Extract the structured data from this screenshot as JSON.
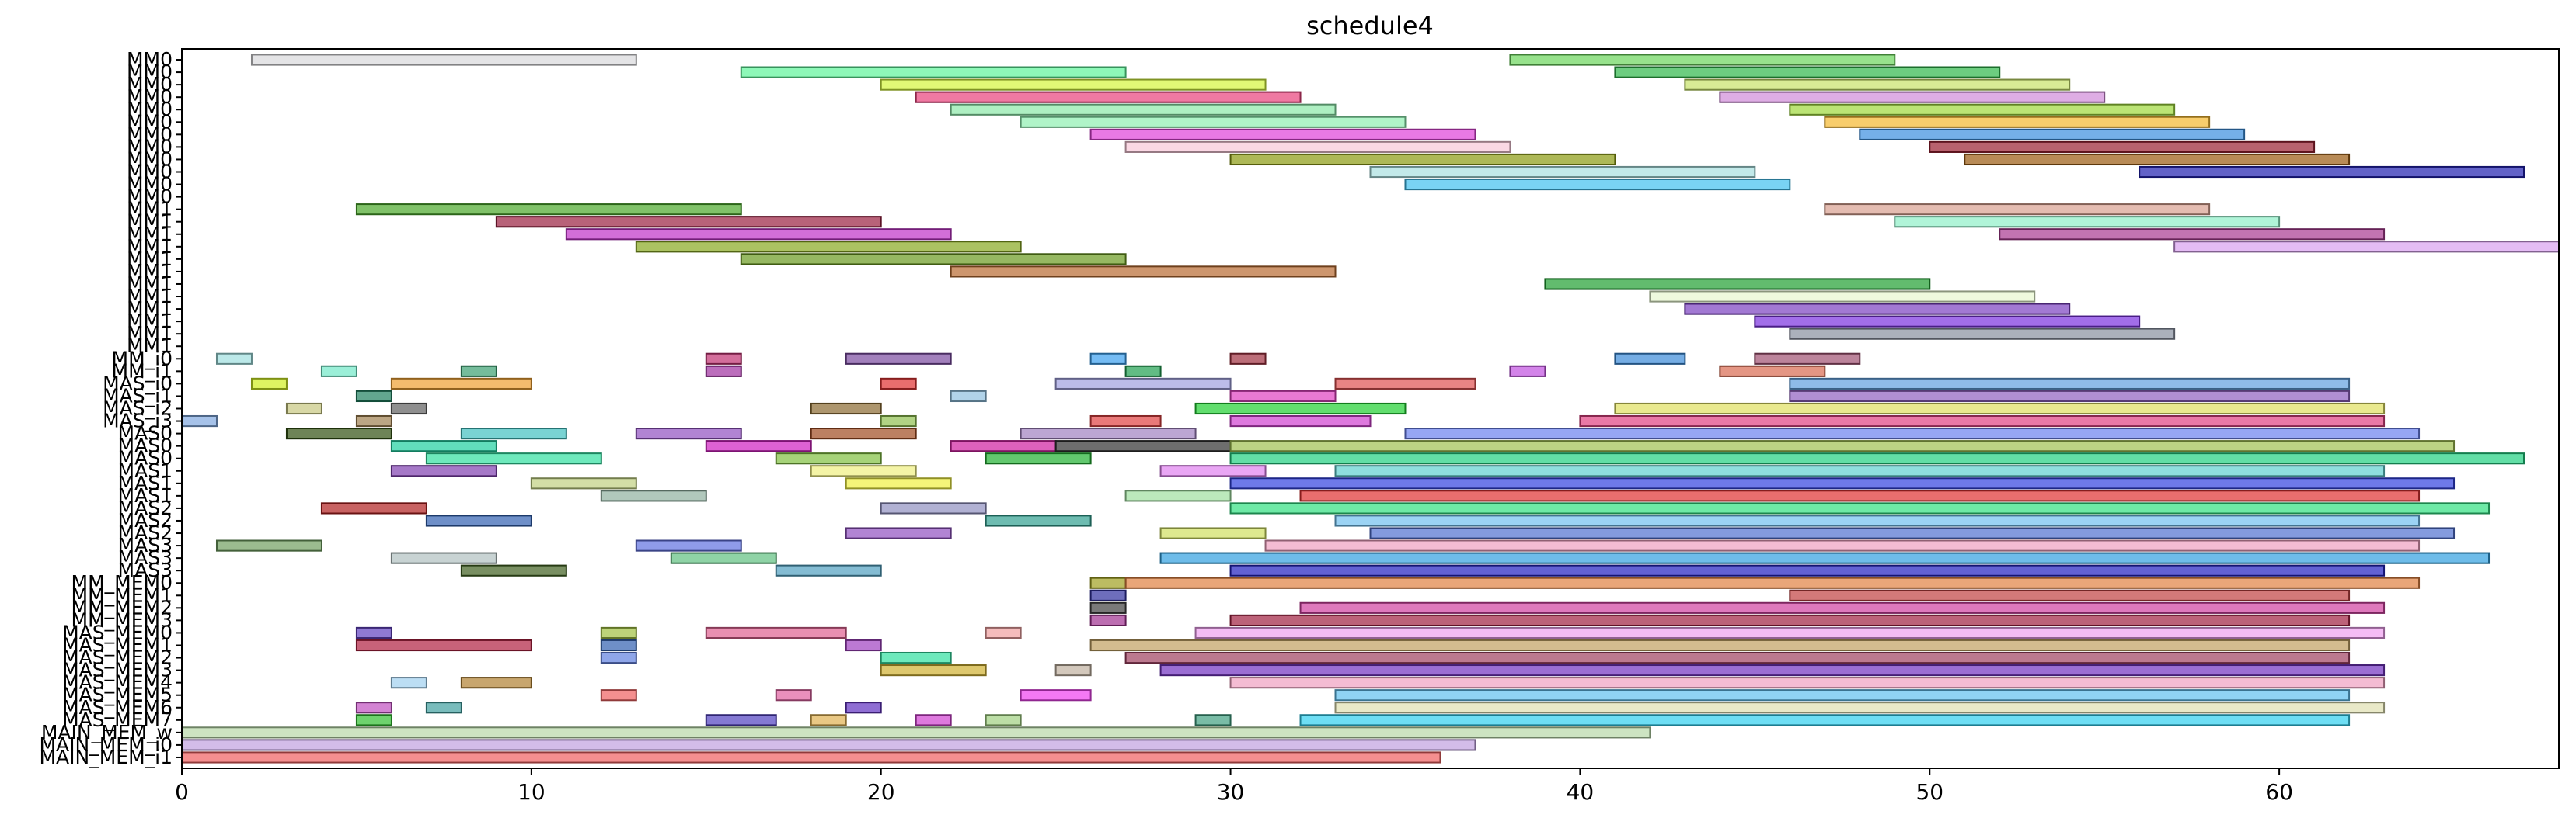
{
  "chart_data": {
    "type": "gantt",
    "title": "schedule4",
    "xlim": [
      0,
      68
    ],
    "xticks": [
      0,
      10,
      20,
      30,
      40,
      50,
      60
    ],
    "grid": false,
    "rows": [
      "MM0",
      "MM0",
      "MM0",
      "MM0",
      "MM0",
      "MM0",
      "MM0",
      "MM0",
      "MM0",
      "MM0",
      "MM0",
      "MM0",
      "MM1",
      "MM1",
      "MM1",
      "MM1",
      "MM1",
      "MM1",
      "MM1",
      "MM1",
      "MM1",
      "MM1",
      "MM1",
      "MM1",
      "MM_i0",
      "MM_i1",
      "MAS_i0",
      "MAS_i1",
      "MAS_i2",
      "MAS_i3",
      "MAS0",
      "MAS0",
      "MAS0",
      "MAS1",
      "MAS1",
      "MAS1",
      "MAS2",
      "MAS2",
      "MAS2",
      "MAS3",
      "MAS3",
      "MAS3",
      "MM_MEM0",
      "MM_MEM1",
      "MM_MEM2",
      "MM_MEM3",
      "MAS_MEM0",
      "MAS_MEM1",
      "MAS_MEM2",
      "MAS_MEM3",
      "MAS_MEM4",
      "MAS_MEM5",
      "MAS_MEM6",
      "MAS_MEM7",
      "MAIN_MEM_w",
      "MAIN_MEM_i0",
      "MAIN_MEM_i1"
    ],
    "tasks": [
      {
        "row": 0,
        "start": 2,
        "end": 13,
        "color": "#d8d8dc"
      },
      {
        "row": 0,
        "start": 38,
        "end": 49,
        "color": "#6bd65b"
      },
      {
        "row": 1,
        "start": 16,
        "end": 27,
        "color": "#5ef59a"
      },
      {
        "row": 1,
        "start": 41,
        "end": 52,
        "color": "#2fb84a"
      },
      {
        "row": 2,
        "start": 20,
        "end": 31,
        "color": "#d4f53c"
      },
      {
        "row": 2,
        "start": 43,
        "end": 54,
        "color": "#c8e36a"
      },
      {
        "row": 3,
        "start": 21,
        "end": 32,
        "color": "#e8407a"
      },
      {
        "row": 3,
        "start": 44,
        "end": 55,
        "color": "#d08ad8"
      },
      {
        "row": 4,
        "start": 22,
        "end": 33,
        "color": "#8be8a8"
      },
      {
        "row": 4,
        "start": 46,
        "end": 57,
        "color": "#9ed83a"
      },
      {
        "row": 5,
        "start": 24,
        "end": 35,
        "color": "#8ef0b0"
      },
      {
        "row": 5,
        "start": 47,
        "end": 58,
        "color": "#f5b82e"
      },
      {
        "row": 6,
        "start": 26,
        "end": 37,
        "color": "#e040d8"
      },
      {
        "row": 6,
        "start": 48,
        "end": 59,
        "color": "#3a8fe0"
      },
      {
        "row": 7,
        "start": 27,
        "end": 38,
        "color": "#f8c8d8"
      },
      {
        "row": 7,
        "start": 50,
        "end": 61,
        "color": "#9a2030"
      },
      {
        "row": 8,
        "start": 30,
        "end": 41,
        "color": "#8a9a10"
      },
      {
        "row": 8,
        "start": 51,
        "end": 62,
        "color": "#9a5a10"
      },
      {
        "row": 9,
        "start": 34,
        "end": 45,
        "color": "#a8e0e0"
      },
      {
        "row": 9,
        "start": 56,
        "end": 67,
        "color": "#2020b0"
      },
      {
        "row": 10,
        "start": 35,
        "end": 46,
        "color": "#40c0f0"
      },
      {
        "row": 11,
        "start": 0,
        "end": 0,
        "color": "#ffffff"
      },
      {
        "row": 12,
        "start": 5,
        "end": 16,
        "color": "#4aa82a"
      },
      {
        "row": 12,
        "start": 47,
        "end": 58,
        "color": "#d8a090"
      },
      {
        "row": 13,
        "start": 9,
        "end": 20,
        "color": "#9a2040"
      },
      {
        "row": 13,
        "start": 49,
        "end": 60,
        "color": "#8ef0c8"
      },
      {
        "row": 14,
        "start": 11,
        "end": 22,
        "color": "#c030c8"
      },
      {
        "row": 14,
        "start": 52,
        "end": 63,
        "color": "#a83890"
      },
      {
        "row": 15,
        "start": 13,
        "end": 24,
        "color": "#88a820"
      },
      {
        "row": 15,
        "start": 57,
        "end": 68,
        "color": "#d8a0f0"
      },
      {
        "row": 16,
        "start": 16,
        "end": 27,
        "color": "#6a9a20"
      },
      {
        "row": 17,
        "start": 22,
        "end": 33,
        "color": "#b86a30"
      },
      {
        "row": 18,
        "start": 39,
        "end": 50,
        "color": "#20a030"
      },
      {
        "row": 19,
        "start": 42,
        "end": 53,
        "color": "#e8f8d0"
      },
      {
        "row": 20,
        "start": 43,
        "end": 54,
        "color": "#7a40c0"
      },
      {
        "row": 21,
        "start": 45,
        "end": 56,
        "color": "#7a30e0"
      },
      {
        "row": 22,
        "start": 46,
        "end": 57,
        "color": "#8890a0"
      },
      {
        "row": 24,
        "start": 1,
        "end": 2,
        "color": "#a0e0e0"
      },
      {
        "row": 24,
        "start": 15,
        "end": 16,
        "color": "#c03070"
      },
      {
        "row": 24,
        "start": 19,
        "end": 22,
        "color": "#7a4aa0"
      },
      {
        "row": 24,
        "start": 26,
        "end": 27,
        "color": "#3aa0f0"
      },
      {
        "row": 24,
        "start": 30,
        "end": 31,
        "color": "#a03040"
      },
      {
        "row": 24,
        "start": 41,
        "end": 43,
        "color": "#3a8ad8"
      },
      {
        "row": 24,
        "start": 45,
        "end": 48,
        "color": "#a05070"
      },
      {
        "row": 25,
        "start": 4,
        "end": 5,
        "color": "#70e8c8"
      },
      {
        "row": 25,
        "start": 8,
        "end": 9,
        "color": "#3aa070"
      },
      {
        "row": 25,
        "start": 15,
        "end": 16,
        "color": "#a030a0"
      },
      {
        "row": 25,
        "start": 27,
        "end": 28,
        "color": "#20a050"
      },
      {
        "row": 25,
        "start": 38,
        "end": 39,
        "color": "#c050e0"
      },
      {
        "row": 25,
        "start": 44,
        "end": 47,
        "color": "#d86a50"
      },
      {
        "row": 26,
        "start": 2,
        "end": 3,
        "color": "#d0f020"
      },
      {
        "row": 26,
        "start": 6,
        "end": 10,
        "color": "#f0a030"
      },
      {
        "row": 26,
        "start": 20,
        "end": 21,
        "color": "#e03030"
      },
      {
        "row": 26,
        "start": 25,
        "end": 30,
        "color": "#a0a0e0"
      },
      {
        "row": 26,
        "start": 33,
        "end": 37,
        "color": "#e05050"
      },
      {
        "row": 26,
        "start": 46,
        "end": 62,
        "color": "#60a0e0"
      },
      {
        "row": 27,
        "start": 5,
        "end": 6,
        "color": "#208060"
      },
      {
        "row": 27,
        "start": 22,
        "end": 23,
        "color": "#90c0e0"
      },
      {
        "row": 27,
        "start": 30,
        "end": 33,
        "color": "#e040c0"
      },
      {
        "row": 27,
        "start": 46,
        "end": 62,
        "color": "#9060c0"
      },
      {
        "row": 28,
        "start": 3,
        "end": 4,
        "color": "#c8c880"
      },
      {
        "row": 28,
        "start": 6,
        "end": 7,
        "color": "#606060"
      },
      {
        "row": 28,
        "start": 18,
        "end": 20,
        "color": "#8a6a30"
      },
      {
        "row": 28,
        "start": 29,
        "end": 35,
        "color": "#20d030"
      },
      {
        "row": 28,
        "start": 41,
        "end": 63,
        "color": "#e0e060"
      },
      {
        "row": 29,
        "start": 0,
        "end": 1,
        "color": "#80a8e0"
      },
      {
        "row": 29,
        "start": 5,
        "end": 6,
        "color": "#a08050"
      },
      {
        "row": 29,
        "start": 20,
        "end": 21,
        "color": "#90c050"
      },
      {
        "row": 29,
        "start": 26,
        "end": 28,
        "color": "#e04040"
      },
      {
        "row": 29,
        "start": 30,
        "end": 34,
        "color": "#d040d0"
      },
      {
        "row": 29,
        "start": 40,
        "end": 63,
        "color": "#e04080"
      },
      {
        "row": 30,
        "start": 3,
        "end": 6,
        "color": "#305010"
      },
      {
        "row": 30,
        "start": 8,
        "end": 11,
        "color": "#40c0c0"
      },
      {
        "row": 30,
        "start": 13,
        "end": 16,
        "color": "#9050c0"
      },
      {
        "row": 30,
        "start": 18,
        "end": 21,
        "color": "#a04a20"
      },
      {
        "row": 30,
        "start": 24,
        "end": 29,
        "color": "#a080c0"
      },
      {
        "row": 30,
        "start": 35,
        "end": 64,
        "color": "#6a80f0"
      },
      {
        "row": 31,
        "start": 6,
        "end": 9,
        "color": "#20d0a0"
      },
      {
        "row": 31,
        "start": 15,
        "end": 18,
        "color": "#d020c0"
      },
      {
        "row": 31,
        "start": 22,
        "end": 25,
        "color": "#d020a0"
      },
      {
        "row": 31,
        "start": 25,
        "end": 30,
        "color": "#303030"
      },
      {
        "row": 31,
        "start": 30,
        "end": 65,
        "color": "#a0c050"
      },
      {
        "row": 32,
        "start": 7,
        "end": 12,
        "color": "#30e0a0"
      },
      {
        "row": 32,
        "start": 17,
        "end": 20,
        "color": "#80c040"
      },
      {
        "row": 32,
        "start": 23,
        "end": 26,
        "color": "#20b030"
      },
      {
        "row": 32,
        "start": 30,
        "end": 67,
        "color": "#20d080"
      },
      {
        "row": 33,
        "start": 6,
        "end": 9,
        "color": "#8040b0"
      },
      {
        "row": 33,
        "start": 18,
        "end": 21,
        "color": "#f0f080"
      },
      {
        "row": 33,
        "start": 28,
        "end": 31,
        "color": "#e080f0"
      },
      {
        "row": 33,
        "start": 33,
        "end": 63,
        "color": "#60d0d0"
      },
      {
        "row": 34,
        "start": 10,
        "end": 13,
        "color": "#c0d080"
      },
      {
        "row": 34,
        "start": 19,
        "end": 22,
        "color": "#f0f040"
      },
      {
        "row": 34,
        "start": 30,
        "end": 65,
        "color": "#3040e0"
      },
      {
        "row": 35,
        "start": 12,
        "end": 15,
        "color": "#90b0a0"
      },
      {
        "row": 35,
        "start": 27,
        "end": 30,
        "color": "#a0e0a0"
      },
      {
        "row": 35,
        "start": 32,
        "end": 64,
        "color": "#e03030"
      },
      {
        "row": 36,
        "start": 4,
        "end": 7,
        "color": "#b02020"
      },
      {
        "row": 36,
        "start": 20,
        "end": 23,
        "color": "#9090c0"
      },
      {
        "row": 36,
        "start": 30,
        "end": 66,
        "color": "#30e080"
      },
      {
        "row": 37,
        "start": 7,
        "end": 10,
        "color": "#3060b0"
      },
      {
        "row": 37,
        "start": 23,
        "end": 26,
        "color": "#30a090"
      },
      {
        "row": 37,
        "start": 33,
        "end": 64,
        "color": "#70c0f0"
      },
      {
        "row": 38,
        "start": 19,
        "end": 22,
        "color": "#9050c0"
      },
      {
        "row": 38,
        "start": 28,
        "end": 31,
        "color": "#d0e060"
      },
      {
        "row": 38,
        "start": 34,
        "end": 65,
        "color": "#5070d0"
      },
      {
        "row": 39,
        "start": 1,
        "end": 4,
        "color": "#70a060"
      },
      {
        "row": 39,
        "start": 13,
        "end": 16,
        "color": "#6070e0"
      },
      {
        "row": 39,
        "start": 31,
        "end": 64,
        "color": "#f0a0c0"
      },
      {
        "row": 40,
        "start": 6,
        "end": 9,
        "color": "#b0c0c0"
      },
      {
        "row": 40,
        "start": 14,
        "end": 17,
        "color": "#60c080"
      },
      {
        "row": 40,
        "start": 28,
        "end": 66,
        "color": "#30a0e0"
      },
      {
        "row": 41,
        "start": 8,
        "end": 11,
        "color": "#406020"
      },
      {
        "row": 41,
        "start": 17,
        "end": 20,
        "color": "#50a0c0"
      },
      {
        "row": 41,
        "start": 30,
        "end": 63,
        "color": "#2020c0"
      },
      {
        "row": 42,
        "start": 26,
        "end": 27,
        "color": "#a0a020"
      },
      {
        "row": 42,
        "start": 27,
        "end": 64,
        "color": "#e08040"
      },
      {
        "row": 43,
        "start": 26,
        "end": 27,
        "color": "#3030a0"
      },
      {
        "row": 43,
        "start": 46,
        "end": 62,
        "color": "#c04040"
      },
      {
        "row": 44,
        "start": 26,
        "end": 27,
        "color": "#404040"
      },
      {
        "row": 44,
        "start": 32,
        "end": 63,
        "color": "#d040a0"
      },
      {
        "row": 45,
        "start": 26,
        "end": 27,
        "color": "#a03090"
      },
      {
        "row": 45,
        "start": 30,
        "end": 62,
        "color": "#a02040"
      },
      {
        "row": 46,
        "start": 5,
        "end": 6,
        "color": "#6040c0"
      },
      {
        "row": 46,
        "start": 12,
        "end": 13,
        "color": "#a0c040"
      },
      {
        "row": 46,
        "start": 15,
        "end": 19,
        "color": "#e06090"
      },
      {
        "row": 46,
        "start": 23,
        "end": 24,
        "color": "#f0a0a0"
      },
      {
        "row": 46,
        "start": 29,
        "end": 63,
        "color": "#f0a0f0"
      },
      {
        "row": 47,
        "start": 5,
        "end": 10,
        "color": "#b02040"
      },
      {
        "row": 47,
        "start": 12,
        "end": 13,
        "color": "#3060b0"
      },
      {
        "row": 47,
        "start": 19,
        "end": 20,
        "color": "#a040c0"
      },
      {
        "row": 47,
        "start": 26,
        "end": 62,
        "color": "#c0a060"
      },
      {
        "row": 48,
        "start": 12,
        "end": 13,
        "color": "#6080e0"
      },
      {
        "row": 48,
        "start": 20,
        "end": 22,
        "color": "#30e0a0"
      },
      {
        "row": 48,
        "start": 27,
        "end": 62,
        "color": "#a04060"
      },
      {
        "row": 49,
        "start": 20,
        "end": 23,
        "color": "#d0b030"
      },
      {
        "row": 49,
        "start": 25,
        "end": 26,
        "color": "#c0b0a0"
      },
      {
        "row": 49,
        "start": 28,
        "end": 63,
        "color": "#7030c0"
      },
      {
        "row": 50,
        "start": 6,
        "end": 7,
        "color": "#a0d0f0"
      },
      {
        "row": 50,
        "start": 8,
        "end": 10,
        "color": "#b08030"
      },
      {
        "row": 50,
        "start": 30,
        "end": 63,
        "color": "#f0a0c0"
      },
      {
        "row": 51,
        "start": 12,
        "end": 13,
        "color": "#f06060"
      },
      {
        "row": 51,
        "start": 17,
        "end": 18,
        "color": "#e060a0"
      },
      {
        "row": 51,
        "start": 24,
        "end": 26,
        "color": "#f040f0"
      },
      {
        "row": 51,
        "start": 33,
        "end": 62,
        "color": "#60c0f0"
      },
      {
        "row": 52,
        "start": 5,
        "end": 6,
        "color": "#c050c0"
      },
      {
        "row": 52,
        "start": 7,
        "end": 8,
        "color": "#40a0a0"
      },
      {
        "row": 52,
        "start": 19,
        "end": 20,
        "color": "#6030c0"
      },
      {
        "row": 52,
        "start": 33,
        "end": 63,
        "color": "#e0e0b0"
      },
      {
        "row": 53,
        "start": 5,
        "end": 6,
        "color": "#30c030"
      },
      {
        "row": 53,
        "start": 15,
        "end": 17,
        "color": "#5040c0"
      },
      {
        "row": 53,
        "start": 18,
        "end": 19,
        "color": "#e0b050"
      },
      {
        "row": 53,
        "start": 21,
        "end": 22,
        "color": "#d040d0"
      },
      {
        "row": 53,
        "start": 23,
        "end": 24,
        "color": "#a0d080"
      },
      {
        "row": 53,
        "start": 29,
        "end": 30,
        "color": "#40a080"
      },
      {
        "row": 53,
        "start": 32,
        "end": 62,
        "color": "#30d0f0"
      },
      {
        "row": 54,
        "start": 0,
        "end": 42,
        "color": "#b8d8a8"
      },
      {
        "row": 55,
        "start": 0,
        "end": 37,
        "color": "#c0a0e0"
      },
      {
        "row": 56,
        "start": 0,
        "end": 36,
        "color": "#f06060"
      }
    ]
  }
}
